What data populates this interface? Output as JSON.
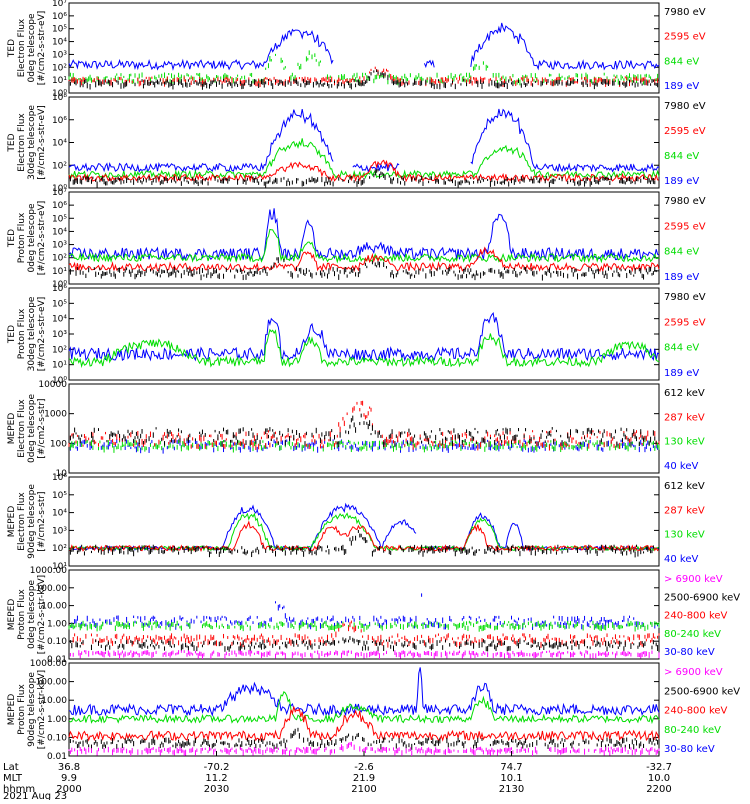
{
  "colors": {
    "black": "#000000",
    "red": "#ff0000",
    "green": "#00dd00",
    "blue": "#0000ff",
    "magenta": "#ff00ff"
  },
  "x_axis": {
    "row_labels": [
      "Lat",
      "MLT",
      "hhmm",
      "2021 Aug 23"
    ],
    "ticks": [
      {
        "lat": "36.8",
        "mlt": "9.9",
        "hhmm": "2000"
      },
      {
        "lat": "-70.2",
        "mlt": "11.2",
        "hhmm": "2030"
      },
      {
        "lat": "-2.6",
        "mlt": "21.9",
        "hhmm": "2100"
      },
      {
        "lat": "74.7",
        "mlt": "10.1",
        "hhmm": "2130"
      },
      {
        "lat": "-32.7",
        "mlt": "10.0",
        "hhmm": "2200"
      }
    ]
  },
  "chart_data": [
    {
      "type": "line",
      "panel": "TED electron flux 0deg",
      "ylabel_lines": [
        "TED",
        "Electron Flux",
        "0deg telescope",
        "[#/cm2-s-str-eV]"
      ],
      "yscale": "log",
      "ylim": [
        1,
        10000000
      ],
      "yticks": [
        "10⁰",
        "10¹",
        "10²",
        "10³",
        "10⁴",
        "10⁵",
        "10⁶",
        "10⁷"
      ],
      "legend": [
        {
          "label": "7980 eV",
          "color": "#000000"
        },
        {
          "label": "2595 eV",
          "color": "#ff0000"
        },
        {
          "label": "844 eV",
          "color": "#00dd00"
        },
        {
          "label": "189 eV",
          "color": "#0000ff"
        }
      ],
      "series": [
        {
          "name": "189 eV",
          "color": "#0000ff",
          "style": "line",
          "base": 2.2,
          "noise": 0.35,
          "events": [
            [
              0.33,
              0.45,
              2.8
            ],
            [
              0.68,
              0.79,
              3.0
            ]
          ],
          "gaps": [
            [
              0.45,
              0.6
            ],
            [
              0.62,
              0.68
            ]
          ]
        },
        {
          "name": "844 eV",
          "color": "#00dd00",
          "style": "spike",
          "base": 1.3,
          "noise": 0.3,
          "events": [
            [
              0.33,
              0.37,
              2
            ],
            [
              0.38,
              0.44,
              1.8
            ],
            [
              0.68,
              0.72,
              1.2
            ]
          ]
        },
        {
          "name": "2595 eV",
          "color": "#ff0000",
          "style": "spike",
          "base": 1.1,
          "noise": 0.2,
          "events": [
            [
              0.5,
              0.55,
              0.9
            ]
          ]
        },
        {
          "name": "7980 eV",
          "color": "#000000",
          "style": "spike",
          "base": 0.9,
          "noise": 0.2,
          "events": [
            [
              0.5,
              0.55,
              0.9
            ]
          ]
        }
      ]
    },
    {
      "type": "line",
      "panel": "TED electron flux 30deg",
      "ylabel_lines": [
        "TED",
        "Electron Flux",
        "30deg telescope",
        "[#/cm2-s-str-eV]"
      ],
      "yscale": "log",
      "ylim": [
        1,
        100000000
      ],
      "yticks": [
        "10⁰",
        "10²",
        "10⁴",
        "10⁶",
        "10⁸"
      ],
      "legend": [
        {
          "label": "7980 eV",
          "color": "#000000"
        },
        {
          "label": "2595 eV",
          "color": "#ff0000"
        },
        {
          "label": "844 eV",
          "color": "#00dd00"
        },
        {
          "label": "189 eV",
          "color": "#0000ff"
        }
      ],
      "series": [
        {
          "name": "189 eV",
          "color": "#0000ff",
          "style": "line",
          "base": 1.8,
          "noise": 0.35,
          "events": [
            [
              0.33,
              0.45,
              5.0
            ],
            [
              0.68,
              0.79,
              5.3
            ]
          ],
          "gaps": [
            [
              0.45,
              0.48
            ],
            [
              0.56,
              0.68
            ]
          ]
        },
        {
          "name": "844 eV",
          "color": "#00dd00",
          "style": "line",
          "base": 1.2,
          "noise": 0.3,
          "events": [
            [
              0.33,
              0.45,
              3.0
            ],
            [
              0.69,
              0.79,
              2.5
            ]
          ]
        },
        {
          "name": "2595 eV",
          "color": "#ff0000",
          "style": "line",
          "base": 0.9,
          "noise": 0.3,
          "events": [
            [
              0.34,
              0.44,
              1.2
            ],
            [
              0.5,
              0.56,
              1.5
            ]
          ]
        },
        {
          "name": "7980 eV",
          "color": "#000000",
          "style": "spike",
          "base": 0.8,
          "noise": 0.25,
          "events": [
            [
              0.5,
              0.55,
              0.7
            ]
          ]
        }
      ]
    },
    {
      "type": "line",
      "panel": "TED proton flux 0deg",
      "ylabel_lines": [
        "TED",
        "Proton Flux",
        "0deg telescope",
        "[#/cm2-s-str-eV]"
      ],
      "yscale": "log",
      "ylim": [
        1,
        10000000
      ],
      "yticks": [
        "10⁰",
        "10¹",
        "10²",
        "10³",
        "10⁴",
        "10⁵",
        "10⁶",
        "10⁷"
      ],
      "legend": [
        {
          "label": "7980 eV",
          "color": "#000000"
        },
        {
          "label": "2595 eV",
          "color": "#ff0000"
        },
        {
          "label": "844 eV",
          "color": "#00dd00"
        },
        {
          "label": "189 eV",
          "color": "#0000ff"
        }
      ],
      "series": [
        {
          "name": "189 eV",
          "color": "#0000ff",
          "style": "line",
          "base": 2.3,
          "noise": 0.45,
          "events": [
            [
              0.33,
              0.36,
              3.4
            ],
            [
              0.39,
              0.42,
              2.2
            ],
            [
              0.48,
              0.55,
              0.6
            ],
            [
              0.71,
              0.75,
              3.2
            ]
          ]
        },
        {
          "name": "844 eV",
          "color": "#00dd00",
          "style": "line",
          "base": 2.0,
          "noise": 0.3,
          "events": [
            [
              0.33,
              0.36,
              2.2
            ],
            [
              0.39,
              0.42,
              1.4
            ]
          ]
        },
        {
          "name": "2595 eV",
          "color": "#ff0000",
          "style": "line",
          "base": 1.3,
          "noise": 0.3,
          "events": [
            [
              0.39,
              0.42,
              1.2
            ],
            [
              0.49,
              0.55,
              0.8
            ],
            [
              0.68,
              0.74,
              1.3
            ]
          ]
        },
        {
          "name": "7980 eV",
          "color": "#000000",
          "style": "spike",
          "base": 1.0,
          "noise": 0.3,
          "events": [
            [
              0.34,
              0.37,
              1.2
            ],
            [
              0.49,
              0.55,
              0.6
            ]
          ]
        }
      ]
    },
    {
      "type": "line",
      "panel": "TED proton flux 30deg",
      "ylabel_lines": [
        "TED",
        "Proton Flux",
        "30deg telescope",
        "[#/cm2-s-str-eV]"
      ],
      "yscale": "log",
      "ylim": [
        1,
        1000000
      ],
      "yticks": [
        "10⁰",
        "10¹",
        "10²",
        "10³",
        "10⁴",
        "10⁵",
        "10⁶"
      ],
      "legend": [
        {
          "label": "7980 eV",
          "color": "#000000"
        },
        {
          "label": "2595 eV",
          "color": "#ff0000"
        },
        {
          "label": "844 eV",
          "color": "#00dd00"
        },
        {
          "label": "189 eV",
          "color": "#0000ff"
        }
      ],
      "series": [
        {
          "name": "189 eV",
          "color": "#0000ff",
          "style": "line",
          "base": 1.7,
          "noise": 0.4,
          "events": [
            [
              0.33,
              0.36,
              2.5
            ],
            [
              0.39,
              0.44,
              1.8
            ],
            [
              0.69,
              0.74,
              2.5
            ]
          ]
        },
        {
          "name": "844 eV",
          "color": "#00dd00",
          "style": "line",
          "base": 1.2,
          "noise": 0.3,
          "events": [
            [
              0.06,
              0.22,
              1.3
            ],
            [
              0.33,
              0.36,
              2.2
            ],
            [
              0.39,
              0.43,
              1.5
            ],
            [
              0.69,
              0.74,
              1.8
            ],
            [
              0.9,
              1.0,
              1.2
            ]
          ]
        }
      ]
    },
    {
      "type": "scatter",
      "panel": "MEPED electron flux 0deg",
      "ylabel_lines": [
        "MEPED",
        "Electron Flux",
        "0deg telescope",
        "[#/cm2-s-str]"
      ],
      "yscale": "log",
      "ylim": [
        10,
        10000
      ],
      "yticks": [
        "10",
        "100",
        "1000",
        "10000"
      ],
      "legend": [
        {
          "label": "612 keV",
          "color": "#000000"
        },
        {
          "label": "287 keV",
          "color": "#ff0000"
        },
        {
          "label": "130 keV",
          "color": "#00dd00"
        },
        {
          "label": "40 keV",
          "color": "#0000ff"
        }
      ],
      "series": [
        {
          "name": "40 keV",
          "color": "#0000ff",
          "style": "spike",
          "base": 2.0,
          "noise": 0.15,
          "events": []
        },
        {
          "name": "130 keV",
          "color": "#00dd00",
          "style": "spike",
          "base": 2.0,
          "noise": 0.12,
          "events": []
        },
        {
          "name": "287 keV",
          "color": "#ff0000",
          "style": "spike",
          "base": 2.2,
          "noise": 0.25,
          "events": [
            [
              0.45,
              0.53,
              1.1
            ]
          ]
        },
        {
          "name": "612 keV",
          "color": "#000000",
          "style": "spike",
          "base": 2.3,
          "noise": 0.25,
          "events": [
            [
              0.46,
              0.52,
              0.5
            ]
          ]
        }
      ]
    },
    {
      "type": "line",
      "panel": "MEPED electron flux 90deg",
      "ylabel_lines": [
        "MEPED",
        "Electron Flux",
        "90deg telescope",
        "[#/cm2-s-str]"
      ],
      "yscale": "log",
      "ylim": [
        10,
        1000000
      ],
      "yticks": [
        "10¹",
        "10²",
        "10³",
        "10⁴",
        "10⁵",
        "10⁶"
      ],
      "legend": [
        {
          "label": "612 keV",
          "color": "#000000"
        },
        {
          "label": "287 keV",
          "color": "#ff0000"
        },
        {
          "label": "130 keV",
          "color": "#00dd00"
        },
        {
          "label": "40 keV",
          "color": "#0000ff"
        }
      ],
      "series": [
        {
          "name": "40 keV",
          "color": "#0000ff",
          "style": "line",
          "base": 2.0,
          "noise": 0.1,
          "events": [
            [
              0.26,
              0.35,
              2.4
            ],
            [
              0.41,
              0.53,
              2.5
            ],
            [
              0.53,
              0.6,
              1.6
            ],
            [
              0.67,
              0.73,
              2.0
            ],
            [
              0.74,
              0.77,
              1.5
            ]
          ],
          "gaps": [
            [
              0.59,
              0.6
            ]
          ]
        },
        {
          "name": "130 keV",
          "color": "#00dd00",
          "style": "line",
          "base": 2.0,
          "noise": 0.12,
          "events": [
            [
              0.27,
              0.34,
              2.0
            ],
            [
              0.41,
              0.52,
              2.0
            ],
            [
              0.67,
              0.73,
              1.7
            ]
          ]
        },
        {
          "name": "287 keV",
          "color": "#ff0000",
          "style": "line",
          "base": 2.0,
          "noise": 0.15,
          "events": [
            [
              0.28,
              0.33,
              1.4
            ],
            [
              0.42,
              0.47,
              1.3
            ],
            [
              0.46,
              0.52,
              1.3
            ],
            [
              0.67,
              0.71,
              1.3
            ]
          ]
        },
        {
          "name": "612 keV",
          "color": "#000000",
          "style": "spike",
          "base": 2.0,
          "noise": 0.2,
          "events": [
            [
              0.47,
              0.51,
              0.9
            ]
          ]
        }
      ]
    },
    {
      "type": "scatter",
      "panel": "MEPED proton flux 0deg",
      "ylabel_lines": [
        "MEPED",
        "Proton Flux",
        "0deg telescope",
        "[#/cm2-s-str-keV]"
      ],
      "yscale": "log",
      "ylim": [
        0.01,
        1000
      ],
      "yticks": [
        "0.01",
        "0.10",
        "1.00",
        "10.00",
        "100.00",
        "1000.00"
      ],
      "legend": [
        {
          "label": "> 6900 keV",
          "color": "#ff00ff"
        },
        {
          "label": "2500-6900 keV",
          "color": "#000000"
        },
        {
          "label": "240-800 keV",
          "color": "#ff0000"
        },
        {
          "label": "80-240 keV",
          "color": "#00dd00"
        },
        {
          "label": "30-80 keV",
          "color": "#0000ff"
        }
      ],
      "series": [
        {
          "name": "30-80 keV",
          "color": "#0000ff",
          "style": "spike",
          "base": 0.2,
          "noise": 0.25,
          "events": [
            [
              0.34,
              0.37,
              1.1
            ],
            [
              0.59,
              0.6,
              2.3
            ]
          ]
        },
        {
          "name": "80-240 keV",
          "color": "#00dd00",
          "style": "spike",
          "base": 0.0,
          "noise": 0.15,
          "events": []
        },
        {
          "name": "240-800 keV",
          "color": "#ff0000",
          "style": "spike",
          "base": -0.8,
          "noise": 0.25,
          "events": [
            [
              0.45,
              0.5,
              0.8
            ]
          ]
        },
        {
          "name": "2500-6900 keV",
          "color": "#000000",
          "style": "spike",
          "base": -1.1,
          "noise": 0.2,
          "events": [
            [
              0.46,
              0.49,
              0.4
            ]
          ]
        },
        {
          "name": "> 6900 keV",
          "color": "#ff00ff",
          "style": "spike",
          "base": -1.6,
          "noise": 0.1,
          "events": []
        }
      ]
    },
    {
      "type": "scatter",
      "panel": "MEPED proton flux 90deg",
      "ylabel_lines": [
        "MEPED",
        "Proton Flux",
        "90deg telescope",
        "[#/cm2-s-str-keV]"
      ],
      "yscale": "log",
      "ylim": [
        0.01,
        1000
      ],
      "yticks": [
        "0.01",
        "0.10",
        "1.00",
        "10.00",
        "100.00",
        "1000.00"
      ],
      "legend": [
        {
          "label": "> 6900 keV",
          "color": "#ff00ff"
        },
        {
          "label": "2500-6900 keV",
          "color": "#000000"
        },
        {
          "label": "240-800 keV",
          "color": "#ff0000"
        },
        {
          "label": "80-240 keV",
          "color": "#00dd00"
        },
        {
          "label": "30-80 keV",
          "color": "#0000ff"
        }
      ],
      "series": [
        {
          "name": "30-80 keV",
          "color": "#0000ff",
          "style": "line",
          "base": 0.5,
          "noise": 0.3,
          "events": [
            [
              0.26,
              0.36,
              1.3
            ],
            [
              0.59,
              0.6,
              2.2
            ],
            [
              0.68,
              0.72,
              1.3
            ]
          ]
        },
        {
          "name": "80-240 keV",
          "color": "#00dd00",
          "style": "line",
          "base": 0.0,
          "noise": 0.2,
          "events": [
            [
              0.35,
              0.38,
              1.5
            ],
            [
              0.45,
              0.52,
              0.7
            ],
            [
              0.68,
              0.72,
              1.0
            ]
          ]
        },
        {
          "name": "240-800 keV",
          "color": "#ff0000",
          "style": "line",
          "base": -0.9,
          "noise": 0.25,
          "events": [
            [
              0.36,
              0.41,
              1.5
            ],
            [
              0.45,
              0.52,
              1.2
            ]
          ]
        },
        {
          "name": "2500-6900 keV",
          "color": "#000000",
          "style": "spike",
          "base": -1.2,
          "noise": 0.2,
          "events": [
            [
              0.37,
              0.4,
              0.6
            ],
            [
              0.45,
              0.5,
              0.5
            ]
          ]
        },
        {
          "name": "> 6900 keV",
          "color": "#ff00ff",
          "style": "spike",
          "base": -1.6,
          "noise": 0.1,
          "events": [
            [
              0.45,
              0.5,
              0.3
            ]
          ]
        }
      ]
    }
  ]
}
